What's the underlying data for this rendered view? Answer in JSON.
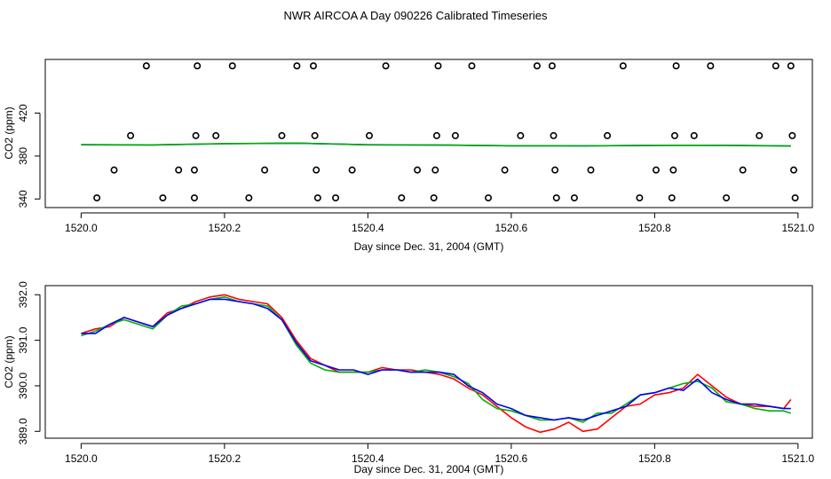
{
  "page_title": "NWR AIRCOA A  Day 090226  Calibrated Timeseries",
  "colors": {
    "axis": "#000000",
    "series_red": "#ff0000",
    "series_green": "#00b000",
    "series_blue": "#0000ff"
  },
  "chart_data": [
    {
      "type": "scatter",
      "xlabel": "Day since Dec. 31, 2004 (GMT)",
      "ylabel": "CO2 (ppm)",
      "xlim": [
        1519.95,
        1521.02
      ],
      "ylim": [
        332,
        470
      ],
      "xticks": [
        1520.0,
        1520.2,
        1520.4,
        1520.6,
        1520.8,
        1521.0
      ],
      "xtick_labels": [
        "1520.0",
        "1520.2",
        "1520.4",
        "1520.6",
        "1520.8",
        "1521.0"
      ],
      "yticks": [
        340,
        380,
        420
      ],
      "ytick_labels": [
        "340",
        "380",
        "420"
      ],
      "marker": "open-circle",
      "points": [
        {
          "x": 1520.022,
          "y": 341
        },
        {
          "x": 1520.046,
          "y": 367
        },
        {
          "x": 1520.069,
          "y": 399
        },
        {
          "x": 1520.091,
          "y": 464
        },
        {
          "x": 1520.114,
          "y": 341
        },
        {
          "x": 1520.136,
          "y": 367
        },
        {
          "x": 1520.158,
          "y": 341
        },
        {
          "x": 1520.158,
          "y": 367
        },
        {
          "x": 1520.16,
          "y": 399
        },
        {
          "x": 1520.162,
          "y": 464
        },
        {
          "x": 1520.188,
          "y": 399
        },
        {
          "x": 1520.211,
          "y": 464
        },
        {
          "x": 1520.234,
          "y": 341
        },
        {
          "x": 1520.256,
          "y": 367
        },
        {
          "x": 1520.28,
          "y": 399
        },
        {
          "x": 1520.301,
          "y": 464
        },
        {
          "x": 1520.324,
          "y": 464
        },
        {
          "x": 1520.326,
          "y": 399
        },
        {
          "x": 1520.328,
          "y": 367
        },
        {
          "x": 1520.33,
          "y": 341
        },
        {
          "x": 1520.355,
          "y": 341
        },
        {
          "x": 1520.378,
          "y": 367
        },
        {
          "x": 1520.402,
          "y": 399
        },
        {
          "x": 1520.425,
          "y": 464
        },
        {
          "x": 1520.447,
          "y": 341
        },
        {
          "x": 1520.469,
          "y": 367
        },
        {
          "x": 1520.492,
          "y": 341
        },
        {
          "x": 1520.494,
          "y": 367
        },
        {
          "x": 1520.496,
          "y": 399
        },
        {
          "x": 1520.498,
          "y": 464
        },
        {
          "x": 1520.522,
          "y": 399
        },
        {
          "x": 1520.545,
          "y": 464
        },
        {
          "x": 1520.568,
          "y": 341
        },
        {
          "x": 1520.591,
          "y": 367
        },
        {
          "x": 1520.613,
          "y": 399
        },
        {
          "x": 1520.636,
          "y": 464
        },
        {
          "x": 1520.657,
          "y": 464
        },
        {
          "x": 1520.659,
          "y": 399
        },
        {
          "x": 1520.661,
          "y": 367
        },
        {
          "x": 1520.663,
          "y": 341
        },
        {
          "x": 1520.688,
          "y": 341
        },
        {
          "x": 1520.711,
          "y": 367
        },
        {
          "x": 1520.734,
          "y": 399
        },
        {
          "x": 1520.756,
          "y": 464
        },
        {
          "x": 1520.779,
          "y": 341
        },
        {
          "x": 1520.802,
          "y": 367
        },
        {
          "x": 1520.824,
          "y": 341
        },
        {
          "x": 1520.826,
          "y": 367
        },
        {
          "x": 1520.828,
          "y": 399
        },
        {
          "x": 1520.83,
          "y": 464
        },
        {
          "x": 1520.855,
          "y": 399
        },
        {
          "x": 1520.878,
          "y": 464
        },
        {
          "x": 1520.9,
          "y": 341
        },
        {
          "x": 1520.923,
          "y": 367
        },
        {
          "x": 1520.946,
          "y": 399
        },
        {
          "x": 1520.969,
          "y": 464
        },
        {
          "x": 1520.99,
          "y": 464
        },
        {
          "x": 1520.992,
          "y": 399
        },
        {
          "x": 1520.994,
          "y": 367
        },
        {
          "x": 1520.996,
          "y": 341
        }
      ],
      "line_series": [
        {
          "color": "#0000ff",
          "x": [
            1520.0,
            1520.1,
            1520.2,
            1520.3,
            1520.4,
            1520.5,
            1520.6,
            1520.7,
            1520.8,
            1520.9,
            1520.99
          ],
          "values": [
            390.5,
            390.3,
            391.5,
            392.0,
            390.5,
            390.2,
            389.6,
            389.5,
            389.9,
            390.0,
            389.4
          ]
        },
        {
          "color": "#00b000",
          "x": [
            1520.0,
            1520.1,
            1520.2,
            1520.3,
            1520.4,
            1520.5,
            1520.6,
            1520.7,
            1520.8,
            1520.9,
            1520.99
          ],
          "values": [
            390.6,
            390.4,
            391.6,
            392.1,
            390.4,
            390.3,
            389.5,
            389.4,
            390.0,
            389.9,
            389.3
          ]
        }
      ]
    },
    {
      "type": "line",
      "xlabel": "Day since Dec. 31, 2004 (GMT)",
      "ylabel": "CO2 (ppm)",
      "xlim": [
        1519.95,
        1521.02
      ],
      "ylim": [
        388.85,
        392.2
      ],
      "xticks": [
        1520.0,
        1520.2,
        1520.4,
        1520.6,
        1520.8,
        1521.0
      ],
      "xtick_labels": [
        "1520.0",
        "1520.2",
        "1520.4",
        "1520.6",
        "1520.8",
        "1521.0"
      ],
      "yticks": [
        389.0,
        390.0,
        391.0,
        392.0
      ],
      "ytick_labels": [
        "389.0",
        "390.0",
        "391.0",
        "392.0"
      ],
      "x": [
        1520.0,
        1520.02,
        1520.04,
        1520.06,
        1520.08,
        1520.1,
        1520.12,
        1520.14,
        1520.16,
        1520.18,
        1520.2,
        1520.22,
        1520.24,
        1520.26,
        1520.28,
        1520.3,
        1520.32,
        1520.34,
        1520.36,
        1520.38,
        1520.4,
        1520.42,
        1520.44,
        1520.46,
        1520.48,
        1520.5,
        1520.52,
        1520.54,
        1520.56,
        1520.58,
        1520.6,
        1520.62,
        1520.64,
        1520.66,
        1520.68,
        1520.7,
        1520.72,
        1520.74,
        1520.76,
        1520.78,
        1520.8,
        1520.82,
        1520.84,
        1520.86,
        1520.88,
        1520.9,
        1520.92,
        1520.94,
        1520.96,
        1520.98,
        1520.99
      ],
      "series": [
        {
          "color": "#ff0000",
          "values": [
            391.15,
            391.25,
            391.3,
            391.5,
            391.4,
            391.3,
            391.6,
            391.7,
            391.85,
            391.95,
            392.0,
            391.9,
            391.85,
            391.8,
            391.5,
            391.0,
            390.6,
            390.45,
            390.3,
            390.3,
            390.3,
            390.4,
            390.35,
            390.35,
            390.3,
            390.25,
            390.15,
            389.95,
            389.8,
            389.55,
            389.3,
            389.1,
            388.98,
            389.05,
            389.2,
            389.0,
            389.05,
            389.3,
            389.55,
            389.6,
            389.8,
            389.85,
            389.95,
            390.25,
            390.0,
            389.75,
            389.6,
            389.55,
            389.55,
            389.5,
            389.7
          ]
        },
        {
          "color": "#00b000",
          "values": [
            391.1,
            391.2,
            391.35,
            391.45,
            391.35,
            391.25,
            391.55,
            391.75,
            391.8,
            391.9,
            391.95,
            391.85,
            391.8,
            391.75,
            391.45,
            390.9,
            390.5,
            390.35,
            390.3,
            390.3,
            390.3,
            390.35,
            390.35,
            390.3,
            390.35,
            390.3,
            390.2,
            390.05,
            389.7,
            389.5,
            389.45,
            389.35,
            389.25,
            389.25,
            389.3,
            389.2,
            389.4,
            389.4,
            389.6,
            389.8,
            389.85,
            389.95,
            390.05,
            390.1,
            389.95,
            389.65,
            389.6,
            389.5,
            389.45,
            389.45,
            389.4
          ]
        },
        {
          "color": "#0000ff",
          "values": [
            391.15,
            391.15,
            391.35,
            391.5,
            391.4,
            391.3,
            391.55,
            391.7,
            391.8,
            391.9,
            391.9,
            391.85,
            391.8,
            391.7,
            391.45,
            390.95,
            390.55,
            390.45,
            390.35,
            390.35,
            390.25,
            390.35,
            390.35,
            390.3,
            390.3,
            390.3,
            390.25,
            390.0,
            389.85,
            389.6,
            389.5,
            389.35,
            389.3,
            389.25,
            389.3,
            389.25,
            389.35,
            389.45,
            389.55,
            389.8,
            389.85,
            389.95,
            389.9,
            390.15,
            389.85,
            389.7,
            389.6,
            389.6,
            389.55,
            389.5,
            389.5
          ]
        }
      ]
    }
  ]
}
